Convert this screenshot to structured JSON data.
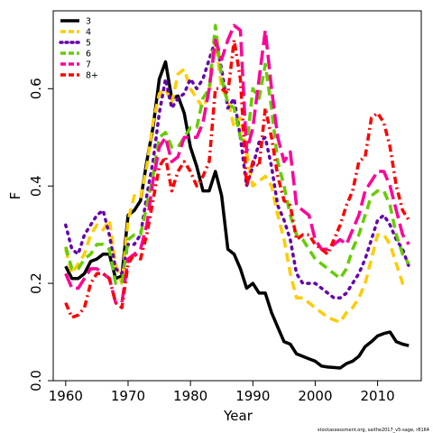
{
  "chart_data": {
    "type": "line",
    "xlabel": "Year",
    "ylabel": "F",
    "xlim": [
      1958,
      2017
    ],
    "ylim": [
      0,
      0.76
    ],
    "x_ticks": [
      1960,
      1970,
      1980,
      1990,
      2000,
      2010
    ],
    "y_ticks": [
      "0.0",
      "0.2",
      "0.4",
      "0.6"
    ],
    "y_tick_values": [
      0,
      0.2,
      0.4,
      0.6
    ],
    "legend_position": "top-left",
    "credit": "stockassessment.org, saithe2017_v5-sage, r8164",
    "x": [
      1960,
      1961,
      1962,
      1963,
      1964,
      1965,
      1966,
      1967,
      1968,
      1969,
      1970,
      1971,
      1972,
      1973,
      1974,
      1975,
      1976,
      1977,
      1978,
      1979,
      1980,
      1981,
      1982,
      1983,
      1984,
      1985,
      1986,
      1987,
      1988,
      1989,
      1990,
      1991,
      1992,
      1993,
      1994,
      1995,
      1996,
      1997,
      1998,
      1999,
      2000,
      2001,
      2002,
      2003,
      2004,
      2005,
      2006,
      2007,
      2008,
      2009,
      2010,
      2011,
      2012,
      2013,
      2014,
      2015
    ],
    "series": [
      {
        "name": "3",
        "color": "#000000",
        "dash": "solid",
        "values": [
          0.235,
          0.21,
          0.21,
          0.22,
          0.245,
          0.25,
          0.26,
          0.26,
          0.21,
          0.215,
          0.34,
          0.35,
          0.37,
          0.45,
          0.52,
          0.62,
          0.655,
          0.58,
          0.585,
          0.55,
          0.48,
          0.44,
          0.39,
          0.39,
          0.43,
          0.38,
          0.27,
          0.26,
          0.23,
          0.19,
          0.2,
          0.18,
          0.18,
          0.14,
          0.11,
          0.08,
          0.075,
          0.055,
          0.05,
          0.045,
          0.04,
          0.03,
          0.028,
          0.027,
          0.026,
          0.035,
          0.04,
          0.05,
          0.07,
          0.08,
          0.092,
          0.097,
          0.1,
          0.08,
          0.075,
          0.072
        ]
      },
      {
        "name": "4",
        "color": "#ffcc00",
        "dash": "dashed",
        "values": [
          0.27,
          0.22,
          0.24,
          0.26,
          0.3,
          0.32,
          0.31,
          0.33,
          0.24,
          0.2,
          0.33,
          0.38,
          0.375,
          0.44,
          0.53,
          0.59,
          0.6,
          0.57,
          0.63,
          0.64,
          0.6,
          0.58,
          0.56,
          0.59,
          0.7,
          0.6,
          0.58,
          0.52,
          0.54,
          0.47,
          0.4,
          0.41,
          0.42,
          0.4,
          0.34,
          0.29,
          0.22,
          0.17,
          0.17,
          0.16,
          0.15,
          0.14,
          0.13,
          0.125,
          0.12,
          0.14,
          0.15,
          0.17,
          0.2,
          0.25,
          0.3,
          0.3,
          0.28,
          0.24,
          0.2,
          0.195
        ]
      },
      {
        "name": "5",
        "color": "#6600aa",
        "dash": "dotted",
        "values": [
          0.32,
          0.27,
          0.26,
          0.3,
          0.32,
          0.34,
          0.35,
          0.3,
          0.23,
          0.22,
          0.28,
          0.28,
          0.3,
          0.38,
          0.45,
          0.55,
          0.62,
          0.56,
          0.58,
          0.59,
          0.62,
          0.6,
          0.62,
          0.66,
          0.7,
          0.64,
          0.56,
          0.58,
          0.5,
          0.4,
          0.44,
          0.49,
          0.5,
          0.44,
          0.36,
          0.33,
          0.29,
          0.22,
          0.2,
          0.2,
          0.2,
          0.19,
          0.18,
          0.17,
          0.17,
          0.18,
          0.2,
          0.22,
          0.25,
          0.29,
          0.33,
          0.34,
          0.32,
          0.29,
          0.27,
          0.235
        ]
      },
      {
        "name": "6",
        "color": "#66cc00",
        "dash": "dashed",
        "values": [
          0.275,
          0.23,
          0.23,
          0.25,
          0.26,
          0.28,
          0.28,
          0.27,
          0.2,
          0.2,
          0.29,
          0.3,
          0.3,
          0.36,
          0.42,
          0.5,
          0.51,
          0.48,
          0.48,
          0.5,
          0.52,
          0.52,
          0.58,
          0.6,
          0.73,
          0.62,
          0.57,
          0.56,
          0.5,
          0.48,
          0.6,
          0.58,
          0.65,
          0.56,
          0.45,
          0.4,
          0.34,
          0.3,
          0.29,
          0.27,
          0.25,
          0.24,
          0.23,
          0.22,
          0.21,
          0.23,
          0.27,
          0.3,
          0.34,
          0.38,
          0.39,
          0.39,
          0.36,
          0.3,
          0.26,
          0.24
        ]
      },
      {
        "name": "7",
        "color": "#ff0099",
        "dash": "longdash",
        "values": [
          0.22,
          0.19,
          0.19,
          0.21,
          0.23,
          0.23,
          0.22,
          0.21,
          0.16,
          0.16,
          0.25,
          0.26,
          0.27,
          0.32,
          0.41,
          0.48,
          0.5,
          0.45,
          0.46,
          0.5,
          0.5,
          0.5,
          0.53,
          0.6,
          0.7,
          0.66,
          0.7,
          0.73,
          0.72,
          0.47,
          0.52,
          0.62,
          0.72,
          0.6,
          0.5,
          0.45,
          0.47,
          0.36,
          0.35,
          0.34,
          0.29,
          0.27,
          0.27,
          0.28,
          0.29,
          0.28,
          0.31,
          0.34,
          0.39,
          0.41,
          0.43,
          0.43,
          0.4,
          0.35,
          0.3,
          0.28
        ]
      },
      {
        "name": "8+",
        "color": "#ff0000",
        "dash": "dotdash",
        "values": [
          0.16,
          0.13,
          0.135,
          0.15,
          0.2,
          0.22,
          0.22,
          0.21,
          0.16,
          0.15,
          0.24,
          0.26,
          0.25,
          0.3,
          0.37,
          0.44,
          0.46,
          0.39,
          0.43,
          0.45,
          0.43,
          0.4,
          0.42,
          0.45,
          0.6,
          0.6,
          0.59,
          0.7,
          0.62,
          0.4,
          0.45,
          0.44,
          0.56,
          0.5,
          0.42,
          0.37,
          0.36,
          0.29,
          0.3,
          0.3,
          0.28,
          0.27,
          0.26,
          0.29,
          0.32,
          0.36,
          0.39,
          0.45,
          0.46,
          0.54,
          0.55,
          0.53,
          0.48,
          0.4,
          0.35,
          0.33
        ]
      }
    ]
  }
}
